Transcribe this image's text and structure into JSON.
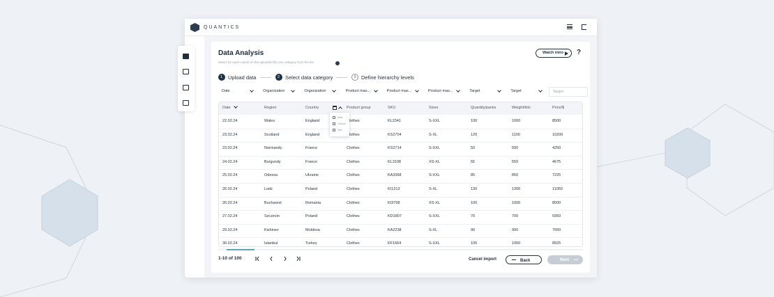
{
  "brand": "QUANTICS",
  "page": {
    "title": "Data Analysis",
    "subtitle": "Select for each column in the uploaded file one category from the list",
    "watch_intro": "Watch intro",
    "help": "?"
  },
  "steps": [
    {
      "number": "1",
      "label": "Upload data"
    },
    {
      "number": "2",
      "label": "Select data category"
    },
    {
      "number": "3",
      "label": "Define hierarchy levels"
    }
  ],
  "filters": [
    "Date",
    "Organization",
    "Organization",
    "Product mas...",
    "Product mas...",
    "Product mas...",
    "Target",
    "Target",
    "Target"
  ],
  "table": {
    "headers": [
      "Date",
      "Region",
      "Country",
      "Product group",
      "SKU",
      "Sizes",
      "Quantity/packs",
      "Weight/kilo",
      "Price/$"
    ],
    "rows": [
      [
        "22.02.24",
        "Wales",
        "England",
        "Clothes",
        "KL2341",
        "S-XXL",
        "100",
        "1000",
        "8500"
      ],
      [
        "23.02.24",
        "Scotland",
        "England",
        "Clothes",
        "KS2704",
        "S-XL",
        "120",
        "1100",
        "10200"
      ],
      [
        "23.02.24",
        "Normandy",
        "France",
        "Clothes",
        "KS2714",
        "S-XXL",
        "50",
        "500",
        "4250"
      ],
      [
        "24.02.24",
        "Burgundy",
        "France",
        "Clothes",
        "KL3108",
        "XS-XL",
        "55",
        "550",
        "4675"
      ],
      [
        "25.02.24",
        "Odessa",
        "Ukraine",
        "Clothes",
        "KA3368",
        "S-XXL",
        "85",
        "850",
        "7225"
      ],
      [
        "26.02.24",
        "Lodz",
        "Poland",
        "Clothes",
        "KI1213",
        "S-XL",
        "130",
        "1300",
        "11050"
      ],
      [
        "26.02.24",
        "Bucharest",
        "Romania",
        "Clothes",
        "KI3758",
        "XS-XL",
        "100",
        "1000",
        "8500"
      ],
      [
        "27.02.24",
        "Szczecin",
        "Poland",
        "Clothes",
        "KD1807",
        "S-XXL",
        "70",
        "700",
        "5950"
      ],
      [
        "29.02.24",
        "Kishinev",
        "Moldova",
        "Clothes",
        "KA2238",
        "S-XL",
        "90",
        "900",
        "7650"
      ],
      [
        "30.02.24",
        "Istanbul",
        "Turkey",
        "Clothes",
        "KF1664",
        "S-XXL",
        "105",
        "1050",
        "8925"
      ]
    ]
  },
  "category_menu": [
    "Date",
    "Column",
    "Text"
  ],
  "pagination": "1-10 of 100",
  "actions": {
    "cancel": "Cancel import",
    "back": "Back",
    "next": "Next"
  }
}
